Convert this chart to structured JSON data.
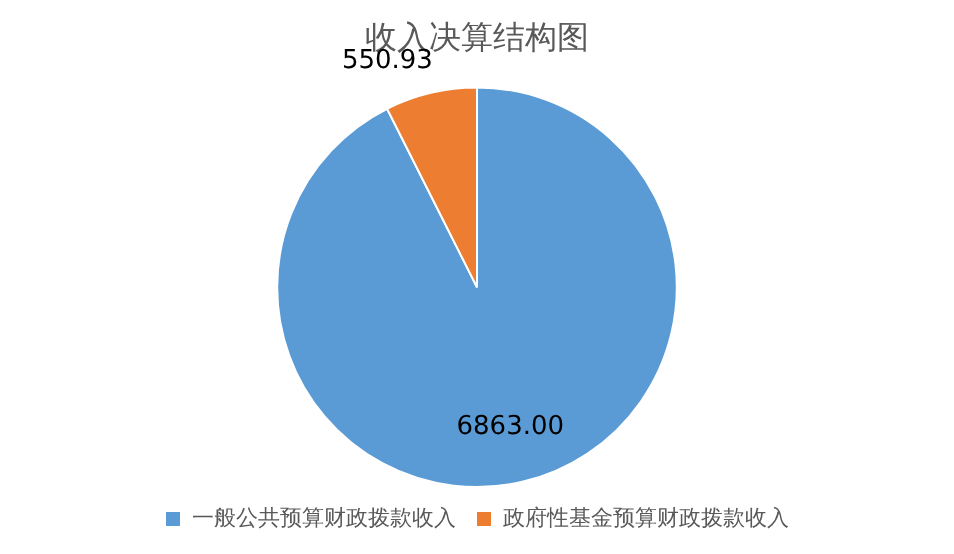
{
  "chart_data": {
    "type": "pie",
    "title": "收入决算结构图",
    "categories": [
      "一般公共预算财政拨款收入",
      "政府性基金预算财政拨款收入"
    ],
    "values": [
      6863.0,
      550.93
    ],
    "colors": [
      "#5b9bd5",
      "#ed7d31"
    ],
    "value_labels": [
      "6863.00",
      "550.93"
    ],
    "legend": "bottom"
  }
}
